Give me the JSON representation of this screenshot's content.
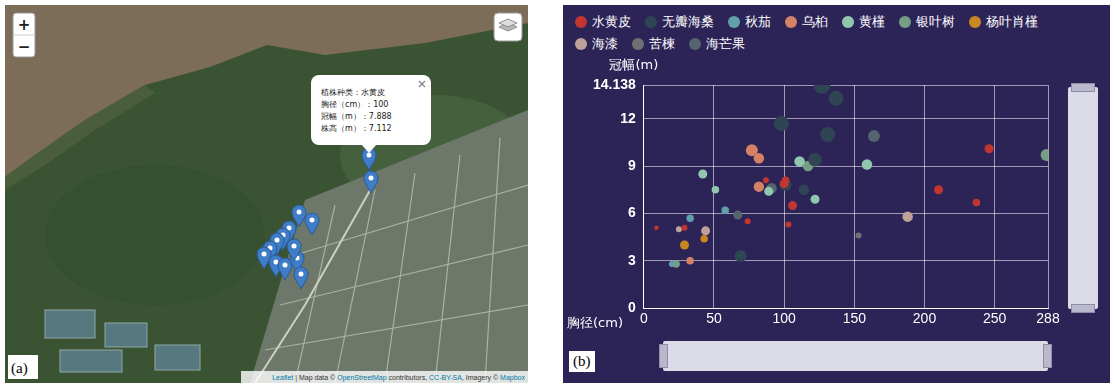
{
  "map": {
    "panel_label": "(a)",
    "zoom": [
      "+",
      "−"
    ],
    "popup": {
      "lines": [
        "植株种类：水黄皮",
        "胸径（cm）：100",
        "冠幅（m）：7.888",
        "株高（m）：7.112"
      ]
    },
    "attribution": [
      "Leaflet",
      " | Map data © ",
      "OpenStreetMap",
      " contributors, ",
      "CC-BY-SA",
      ", Imagery © ",
      "Mapbox"
    ]
  },
  "chart_data": {
    "type": "bubble",
    "panel_label": "(b)",
    "xlabel": "胸径(cm)",
    "ylabel": "冠幅(m)",
    "xlim": [
      0,
      288
    ],
    "xticks": [
      0,
      50,
      100,
      150,
      200,
      250,
      288
    ],
    "ylim": [
      0,
      14.138
    ],
    "yticks": [
      0,
      3,
      6,
      9,
      12,
      14.138
    ],
    "grid": true,
    "legend": "top",
    "series": [
      {
        "name": "水黄皮",
        "color": "#c23531",
        "x": [
          246,
          210,
          237,
          101,
          87,
          74,
          103,
          29,
          9,
          106,
          100
        ],
        "values": [
          10.1,
          7.5,
          6.7,
          8.1,
          8.1,
          5.5,
          5.3,
          5.1,
          5.1,
          6.5,
          7.888
        ],
        "sizes": [
          4,
          4,
          3,
          3,
          2,
          2,
          2,
          2,
          1,
          4,
          4
        ]
      },
      {
        "name": "无瓣海桑",
        "color": "#2f4554",
        "x": [
          127,
          137,
          131,
          98,
          122,
          101,
          69,
          114
        ],
        "values": [
          14.1,
          13.3,
          11.0,
          11.7,
          9.4,
          7.8,
          3.3,
          7.5
        ],
        "sizes": [
          9,
          8,
          8,
          8,
          7,
          6,
          6,
          5
        ]
      },
      {
        "name": "秋茄",
        "color": "#61a0a8",
        "x": [
          33,
          58,
          20
        ],
        "values": [
          5.7,
          6.2,
          2.8
        ],
        "sizes": [
          3,
          3,
          2
        ]
      },
      {
        "name": "乌桕",
        "color": "#d48265",
        "x": [
          77,
          82,
          82,
          33
        ],
        "values": [
          10.0,
          9.5,
          7.7,
          3.0
        ],
        "sizes": [
          6,
          5,
          5,
          3
        ]
      },
      {
        "name": "黄槿",
        "color": "#91c7ae",
        "x": [
          111,
          159,
          122,
          42,
          51,
          89
        ],
        "values": [
          9.3,
          9.1,
          6.9,
          8.5,
          7.5,
          7.4
        ],
        "sizes": [
          5,
          5,
          4,
          4,
          3,
          4
        ]
      },
      {
        "name": "银叶树",
        "color": "#749f83",
        "x": [
          287,
          117,
          23
        ],
        "values": [
          9.7,
          9.0,
          2.8
        ],
        "sizes": [
          6,
          5,
          3
        ]
      },
      {
        "name": "杨叶肖槿",
        "color": "#ca8622",
        "x": [
          29,
          43
        ],
        "values": [
          4.0,
          4.4
        ],
        "sizes": [
          4,
          3
        ]
      },
      {
        "name": "海漆",
        "color": "#bda29a",
        "x": [
          188,
          44,
          25
        ],
        "values": [
          5.8,
          4.9,
          5.0
        ],
        "sizes": [
          5,
          4,
          2
        ]
      },
      {
        "name": "苦楝",
        "color": "#6e7074",
        "x": [
          153
        ],
        "values": [
          4.6
        ],
        "sizes": [
          2
        ]
      },
      {
        "name": "海芒果",
        "color": "#546570",
        "x": [
          164,
          67,
          91
        ],
        "values": [
          10.9,
          5.9,
          7.6
        ],
        "sizes": [
          6,
          4,
          5
        ]
      }
    ]
  }
}
